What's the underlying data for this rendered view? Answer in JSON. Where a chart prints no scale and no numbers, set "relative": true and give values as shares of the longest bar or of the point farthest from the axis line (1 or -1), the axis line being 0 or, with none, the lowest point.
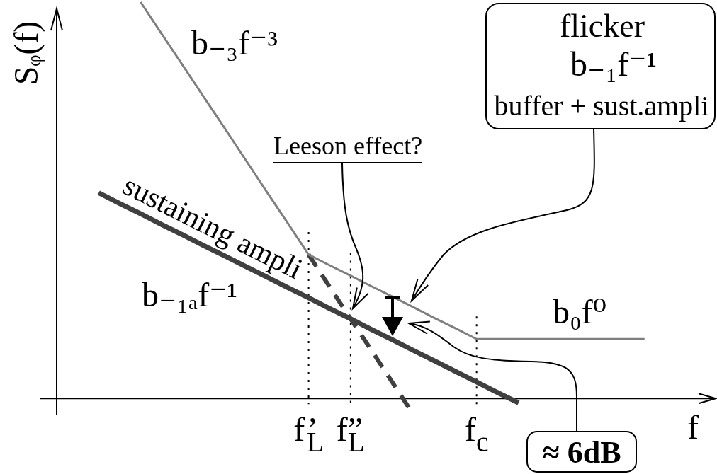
{
  "chart_data": {
    "type": "line",
    "relative": true,
    "xlabel": "f",
    "ylabel": "Sᵩ(f)",
    "categories": [
      null,
      null,
      null,
      null,
      null,
      null,
      null,
      null,
      null,
      null,
      null,
      null,
      "f’$_{L}$",
      null,
      "f”$_{L}$",
      null,
      null,
      null,
      null,
      null,
      "f$_{c}$",
      null,
      null,
      null,
      null,
      null,
      null,
      null,
      null,
      null,
      null
    ],
    "series": [
      {
        "color": "#7f7f7f",
        "values": [
          null,
          null,
          null,
          null,
          1.0,
          0.92,
          0.841,
          0.761,
          0.682,
          0.602,
          0.522,
          0.443,
          0.363,
          0.336,
          0.31,
          0.283,
          0.257,
          0.23,
          0.203,
          0.177,
          0.15,
          0.15,
          0.15,
          0.15,
          0.15,
          0.15,
          0.15,
          0.15,
          0.15,
          null,
          null
        ]
      },
      {
        "name": "sustaining ampli",
        "color": "#404040",
        "values": [
          null,
          null,
          0.519,
          0.492,
          0.466,
          0.439,
          0.413,
          0.386,
          0.36,
          0.333,
          0.307,
          0.28,
          0.254,
          0.227,
          0.201,
          0.174,
          0.148,
          0.121,
          0.095,
          0.068,
          0.042,
          0.015,
          -0.011,
          null,
          null,
          null,
          null,
          null,
          null,
          null,
          null
        ]
      },
      {
        "color": "#404040",
        "line_style": "dashed",
        "values": [
          null,
          null,
          null,
          null,
          null,
          null,
          null,
          null,
          null,
          null,
          null,
          null,
          0.363,
          0.282,
          0.201,
          0.121,
          0.04,
          -0.041,
          null,
          null,
          null,
          null,
          null,
          null,
          null,
          null,
          null,
          null,
          null,
          null,
          null
        ]
      }
    ],
    "ref_lines": [
      {
        "axis": "x",
        "value": "f’$_{L}$",
        "line_style": "dotted",
        "color": "#000000"
      },
      {
        "axis": "x",
        "value": "f”$_{L}$",
        "line_style": "dotted",
        "color": "#000000"
      },
      {
        "axis": "x",
        "value": "f$_{c}$",
        "line_style": "dotted",
        "color": "#000000"
      }
    ],
    "annotations": [
      "b₋₃f⁻³",
      "Leeson effect?",
      "flicker",
      "b₋₁f⁻¹",
      "buffer + sust.ampli",
      "b₋₁ₐf⁻¹",
      "b₀f⁰",
      "≈ 6dB"
    ],
    "marker": "none",
    "tick_labels": "x"
  }
}
